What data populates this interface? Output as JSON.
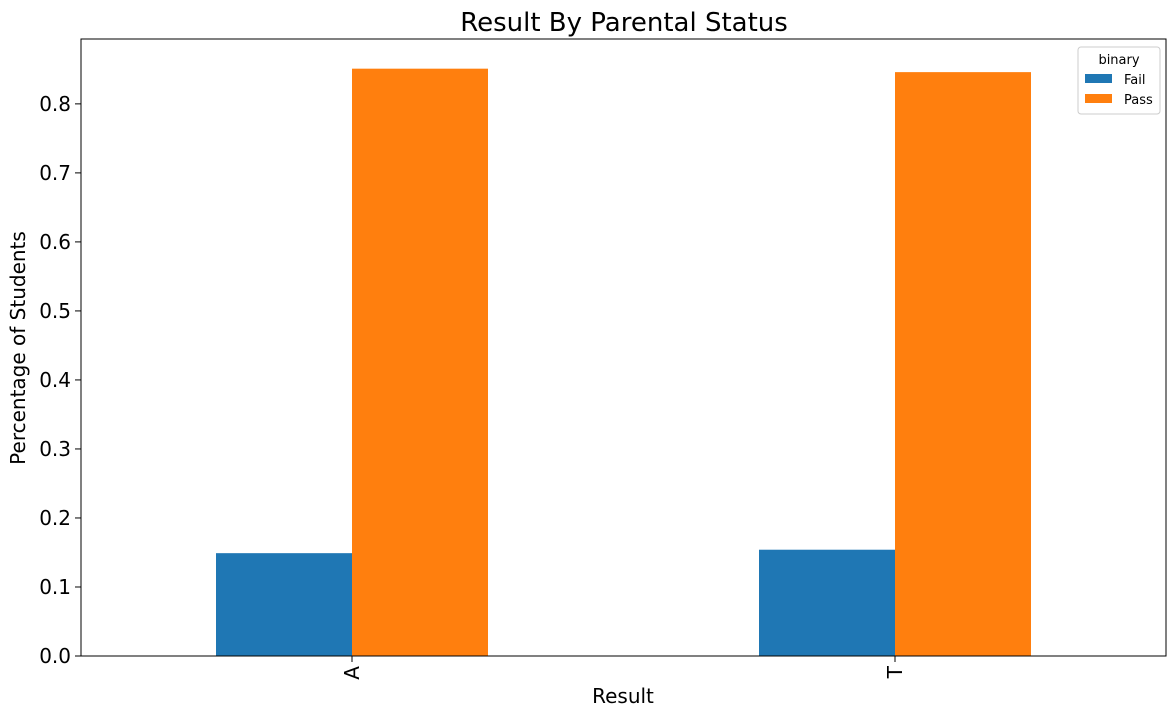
{
  "chart_data": {
    "type": "bar",
    "title": "Result By Parental Status",
    "xlabel": "Result",
    "ylabel": "Percentage of Students",
    "categories": [
      "A",
      "T"
    ],
    "series": [
      {
        "name": "Fail",
        "color": "#1f77b4",
        "values": [
          0.149,
          0.154
        ]
      },
      {
        "name": "Pass",
        "color": "#ff7f0e",
        "values": [
          0.851,
          0.846
        ]
      }
    ],
    "ylim": [
      0,
      0.894
    ],
    "yticks": [
      "0.0",
      "0.1",
      "0.2",
      "0.3",
      "0.4",
      "0.5",
      "0.6",
      "0.7",
      "0.8"
    ],
    "legend": {
      "title": "binary",
      "placement": "top-right"
    },
    "grid": false
  }
}
